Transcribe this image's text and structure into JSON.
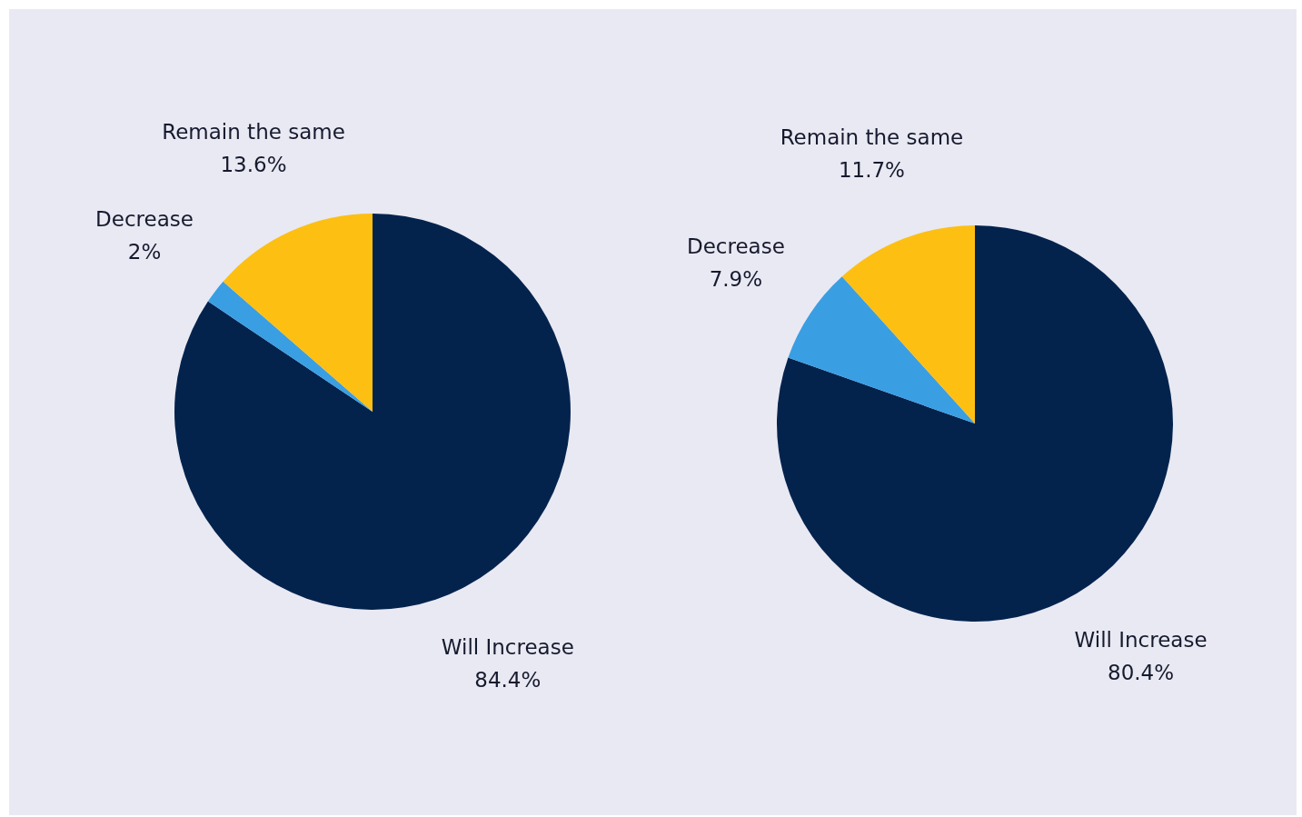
{
  "chart_data": [
    {
      "type": "pie",
      "categories": [
        "Will Increase",
        "Decrease",
        "Remain the same"
      ],
      "values": [
        84.4,
        2,
        13.6
      ],
      "value_labels": [
        "84.4%",
        "2%",
        "13.6%"
      ],
      "colors": [
        "#03234d",
        "#3a9ee3",
        "#fdbf12"
      ],
      "legend": false
    },
    {
      "type": "pie",
      "categories": [
        "Will Increase",
        "Decrease",
        "Remain the same"
      ],
      "values": [
        80.4,
        7.9,
        11.7
      ],
      "value_labels": [
        "80.4%",
        "7.9%",
        "11.7%"
      ],
      "colors": [
        "#03234d",
        "#3a9ee3",
        "#fdbf12"
      ],
      "legend": false
    }
  ]
}
